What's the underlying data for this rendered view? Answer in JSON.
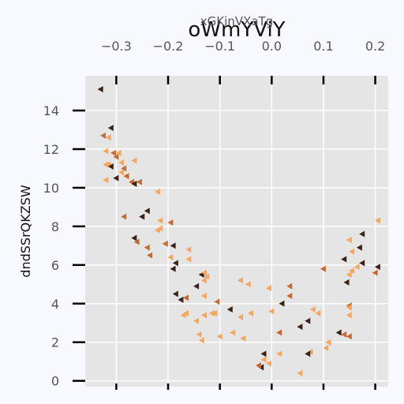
{
  "chart_data": {
    "type": "scatter",
    "title": "oWmYViY",
    "xlabel": "xGKinVXaTg",
    "ylabel": "dndSSrQKZSW",
    "xlim": [
      -0.36,
      0.225
    ],
    "ylim": [
      -0.3,
      15.8
    ],
    "xticks": [
      -0.3,
      -0.2,
      -0.1,
      0.0,
      0.1,
      0.2
    ],
    "xtick_labels": [
      "−0.3",
      "−0.2",
      "−0.1",
      "0.0",
      "0.1",
      "0.2"
    ],
    "yticks": [
      0,
      2,
      4,
      6,
      8,
      10,
      12,
      14
    ],
    "ytick_labels": [
      "0",
      "2",
      "4",
      "6",
      "8",
      "10",
      "12",
      "14"
    ],
    "x_axis_position": "top",
    "grid": true,
    "marker": "triangle-left",
    "colors": {
      "background": "#e5e5e5",
      "page": "#f8f8ff",
      "grid": "#ffffff",
      "light": "#f5a761",
      "mid": "#c56a33",
      "dark": "#3b2216"
    },
    "points": [
      {
        "x": -0.33,
        "y": 15.1,
        "c": "dark"
      },
      {
        "x": -0.325,
        "y": 12.7,
        "c": "mid"
      },
      {
        "x": -0.31,
        "y": 13.1,
        "c": "dark"
      },
      {
        "x": -0.315,
        "y": 12.6,
        "c": "light"
      },
      {
        "x": -0.32,
        "y": 11.9,
        "c": "light"
      },
      {
        "x": -0.305,
        "y": 11.8,
        "c": "mid"
      },
      {
        "x": -0.32,
        "y": 11.2,
        "c": "light"
      },
      {
        "x": -0.315,
        "y": 11.2,
        "c": "light"
      },
      {
        "x": -0.31,
        "y": 11.1,
        "c": "dark"
      },
      {
        "x": -0.3,
        "y": 11.6,
        "c": "mid"
      },
      {
        "x": -0.3,
        "y": 10.5,
        "c": "dark"
      },
      {
        "x": -0.295,
        "y": 11.8,
        "c": "light"
      },
      {
        "x": -0.29,
        "y": 11.3,
        "c": "light"
      },
      {
        "x": -0.29,
        "y": 10.8,
        "c": "light"
      },
      {
        "x": -0.285,
        "y": 11.0,
        "c": "mid"
      },
      {
        "x": -0.28,
        "y": 10.6,
        "c": "mid"
      },
      {
        "x": -0.27,
        "y": 10.3,
        "c": "mid"
      },
      {
        "x": -0.32,
        "y": 10.4,
        "c": "light"
      },
      {
        "x": -0.265,
        "y": 11.4,
        "c": "light"
      },
      {
        "x": -0.255,
        "y": 10.3,
        "c": "mid"
      },
      {
        "x": -0.265,
        "y": 10.2,
        "c": "dark"
      },
      {
        "x": -0.22,
        "y": 9.8,
        "c": "light"
      },
      {
        "x": -0.285,
        "y": 8.5,
        "c": "mid"
      },
      {
        "x": -0.24,
        "y": 8.8,
        "c": "dark"
      },
      {
        "x": -0.25,
        "y": 8.5,
        "c": "dark"
      },
      {
        "x": -0.215,
        "y": 8.3,
        "c": "light"
      },
      {
        "x": -0.195,
        "y": 8.2,
        "c": "mid"
      },
      {
        "x": -0.22,
        "y": 7.8,
        "c": "light"
      },
      {
        "x": -0.215,
        "y": 7.9,
        "c": "light"
      },
      {
        "x": -0.265,
        "y": 7.4,
        "c": "dark"
      },
      {
        "x": -0.26,
        "y": 7.2,
        "c": "mid"
      },
      {
        "x": -0.24,
        "y": 6.9,
        "c": "mid"
      },
      {
        "x": -0.235,
        "y": 6.5,
        "c": "mid"
      },
      {
        "x": -0.205,
        "y": 7.1,
        "c": "mid"
      },
      {
        "x": -0.19,
        "y": 7.0,
        "c": "dark"
      },
      {
        "x": -0.16,
        "y": 6.8,
        "c": "light"
      },
      {
        "x": -0.195,
        "y": 6.4,
        "c": "light"
      },
      {
        "x": -0.16,
        "y": 6.3,
        "c": "light"
      },
      {
        "x": -0.185,
        "y": 6.1,
        "c": "dark"
      },
      {
        "x": -0.19,
        "y": 5.8,
        "c": "dark"
      },
      {
        "x": -0.135,
        "y": 5.5,
        "c": "dark"
      },
      {
        "x": -0.13,
        "y": 5.6,
        "c": "light"
      },
      {
        "x": -0.13,
        "y": 5.2,
        "c": "light"
      },
      {
        "x": -0.145,
        "y": 4.9,
        "c": "dark"
      },
      {
        "x": -0.125,
        "y": 5.4,
        "c": "light"
      },
      {
        "x": -0.185,
        "y": 4.5,
        "c": "dark"
      },
      {
        "x": -0.175,
        "y": 4.2,
        "c": "dark"
      },
      {
        "x": -0.165,
        "y": 4.3,
        "c": "mid"
      },
      {
        "x": -0.105,
        "y": 4.1,
        "c": "mid"
      },
      {
        "x": -0.13,
        "y": 4.4,
        "c": "light"
      },
      {
        "x": -0.115,
        "y": 3.5,
        "c": "light"
      },
      {
        "x": -0.17,
        "y": 3.4,
        "c": "light"
      },
      {
        "x": -0.165,
        "y": 3.5,
        "c": "light"
      },
      {
        "x": -0.145,
        "y": 3.1,
        "c": "light"
      },
      {
        "x": -0.13,
        "y": 3.4,
        "c": "light"
      },
      {
        "x": -0.11,
        "y": 3.5,
        "c": "light"
      },
      {
        "x": -0.08,
        "y": 3.7,
        "c": "dark"
      },
      {
        "x": -0.04,
        "y": 3.5,
        "c": "light"
      },
      {
        "x": -0.06,
        "y": 3.3,
        "c": "light"
      },
      {
        "x": -0.14,
        "y": 2.4,
        "c": "light"
      },
      {
        "x": -0.135,
        "y": 2.1,
        "c": "light"
      },
      {
        "x": -0.1,
        "y": 2.3,
        "c": "light"
      },
      {
        "x": -0.075,
        "y": 2.5,
        "c": "light"
      },
      {
        "x": -0.055,
        "y": 2.2,
        "c": "light"
      },
      {
        "x": -0.06,
        "y": 5.2,
        "c": "light"
      },
      {
        "x": -0.045,
        "y": 5.0,
        "c": "light"
      },
      {
        "x": -0.005,
        "y": 4.8,
        "c": "light"
      },
      {
        "x": 0.035,
        "y": 4.9,
        "c": "mid"
      },
      {
        "x": 0.035,
        "y": 4.4,
        "c": "mid"
      },
      {
        "x": 0.02,
        "y": 4.0,
        "c": "dark"
      },
      {
        "x": 0.0,
        "y": 3.6,
        "c": "light"
      },
      {
        "x": 0.07,
        "y": 3.1,
        "c": "dark"
      },
      {
        "x": 0.055,
        "y": 2.8,
        "c": "dark"
      },
      {
        "x": 0.015,
        "y": 2.5,
        "c": "mid"
      },
      {
        "x": 0.09,
        "y": 3.5,
        "c": "light"
      },
      {
        "x": 0.08,
        "y": 3.7,
        "c": "light"
      },
      {
        "x": 0.1,
        "y": 5.8,
        "c": "mid"
      },
      {
        "x": -0.015,
        "y": 1.4,
        "c": "dark"
      },
      {
        "x": -0.015,
        "y": 1.1,
        "c": "light"
      },
      {
        "x": -0.02,
        "y": 0.7,
        "c": "dark"
      },
      {
        "x": -0.025,
        "y": 0.8,
        "c": "mid"
      },
      {
        "x": -0.005,
        "y": 0.9,
        "c": "light"
      },
      {
        "x": 0.015,
        "y": 1.4,
        "c": "light"
      },
      {
        "x": 0.055,
        "y": 0.4,
        "c": "light"
      },
      {
        "x": 0.075,
        "y": 1.5,
        "c": "light"
      },
      {
        "x": 0.07,
        "y": 1.4,
        "c": "dark"
      },
      {
        "x": 0.11,
        "y": 2.0,
        "c": "light"
      },
      {
        "x": 0.105,
        "y": 1.7,
        "c": "light"
      },
      {
        "x": 0.13,
        "y": 2.5,
        "c": "dark"
      },
      {
        "x": 0.14,
        "y": 2.4,
        "c": "mid"
      },
      {
        "x": 0.15,
        "y": 2.3,
        "c": "mid"
      },
      {
        "x": 0.15,
        "y": 3.4,
        "c": "light"
      },
      {
        "x": 0.15,
        "y": 3.9,
        "c": "mid"
      },
      {
        "x": 0.15,
        "y": 3.8,
        "c": "light"
      },
      {
        "x": 0.145,
        "y": 5.1,
        "c": "dark"
      },
      {
        "x": 0.15,
        "y": 5.5,
        "c": "light"
      },
      {
        "x": 0.155,
        "y": 5.7,
        "c": "light"
      },
      {
        "x": 0.14,
        "y": 6.3,
        "c": "dark"
      },
      {
        "x": 0.165,
        "y": 5.9,
        "c": "light"
      },
      {
        "x": 0.175,
        "y": 6.1,
        "c": "dark"
      },
      {
        "x": 0.155,
        "y": 6.7,
        "c": "light"
      },
      {
        "x": 0.15,
        "y": 7.3,
        "c": "light"
      },
      {
        "x": 0.17,
        "y": 6.9,
        "c": "dark"
      },
      {
        "x": 0.175,
        "y": 7.6,
        "c": "dark"
      },
      {
        "x": 0.2,
        "y": 5.6,
        "c": "mid"
      },
      {
        "x": 0.205,
        "y": 5.9,
        "c": "dark"
      },
      {
        "x": 0.205,
        "y": 8.3,
        "c": "light"
      }
    ]
  }
}
